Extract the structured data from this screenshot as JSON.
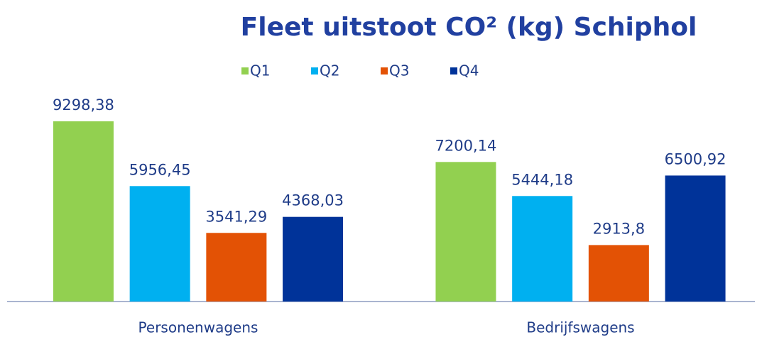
{
  "chart_data": {
    "type": "bar",
    "title": "Fleet uitstoot CO² (kg) Schiphol",
    "categories": [
      "Personenwagens",
      "Bedrijfswagens"
    ],
    "series": [
      {
        "name": "Q1",
        "color": "#92d050",
        "values": [
          9298.38,
          7200.14
        ],
        "value_labels": [
          "9298,38",
          "7200,14"
        ]
      },
      {
        "name": "Q2",
        "color": "#00b0f0",
        "values": [
          5956.45,
          5444.18
        ],
        "value_labels": [
          "5956,45",
          "5444,18"
        ]
      },
      {
        "name": "Q3",
        "color": "#e35205",
        "values": [
          3541.29,
          2913.8
        ],
        "value_labels": [
          "3541,29",
          "2913,8"
        ]
      },
      {
        "name": "Q4",
        "color": "#003399",
        "values": [
          4368.03,
          6500.92
        ],
        "value_labels": [
          "4368,03",
          "6500,92"
        ]
      }
    ],
    "legend": "top"
  }
}
